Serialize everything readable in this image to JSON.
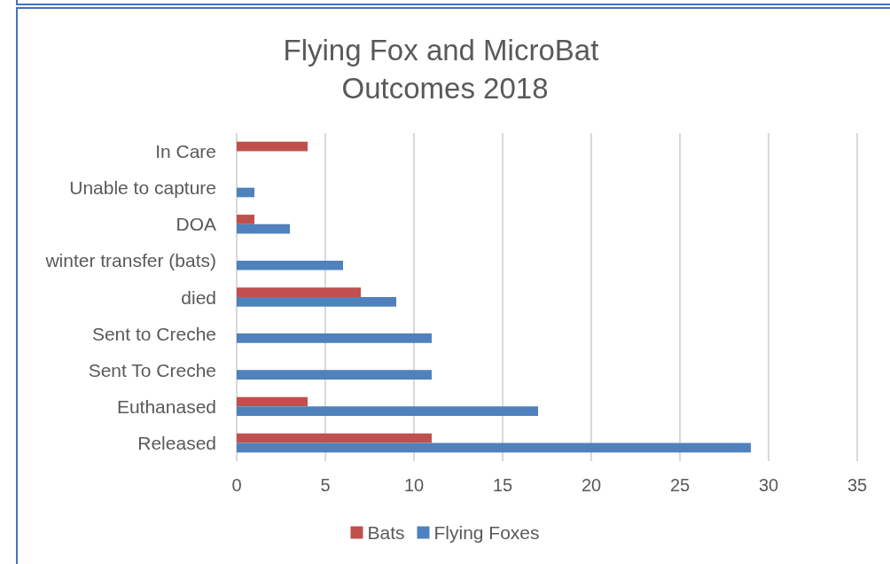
{
  "chart_data": {
    "type": "bar",
    "orientation": "horizontal",
    "title": "Flying Fox and MicroBat Outcomes 2018",
    "categories": [
      "In Care",
      "Unable to capture",
      "DOA",
      "winter transfer (bats)",
      "died",
      "Sent to Creche",
      "Sent To Creche",
      "Euthanased",
      "Released"
    ],
    "series": [
      {
        "name": "Bats",
        "color": "#c0504d",
        "values": [
          4,
          null,
          1,
          null,
          7,
          null,
          null,
          4,
          11
        ]
      },
      {
        "name": "Flying Foxes",
        "color": "#4f81bd",
        "values": [
          null,
          1,
          3,
          6,
          9,
          11,
          11,
          17,
          29
        ]
      }
    ],
    "xlim": [
      0,
      35
    ],
    "xticks": [
      0,
      5,
      10,
      15,
      20,
      25,
      30,
      35
    ],
    "grid": "x",
    "legend": "bottom"
  }
}
